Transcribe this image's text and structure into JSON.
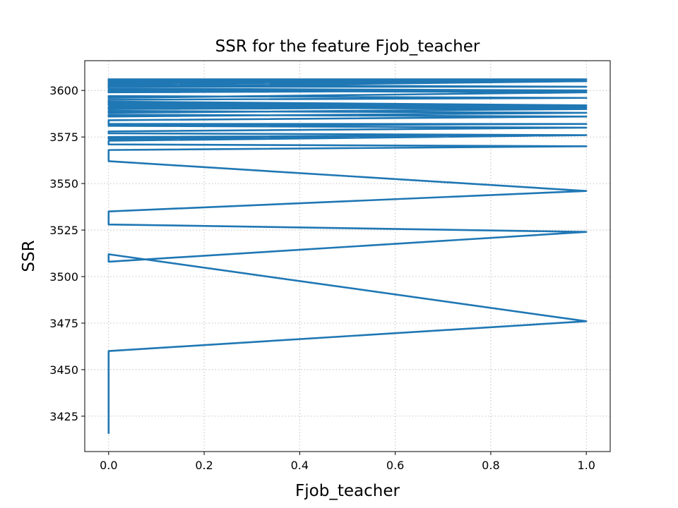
{
  "chart_data": {
    "type": "line",
    "title": "SSR for the feature Fjob_teacher",
    "xlabel": "Fjob_teacher",
    "ylabel": "SSR",
    "xlim": [
      -0.05,
      1.05
    ],
    "ylim": [
      3406,
      3616
    ],
    "xticks": [
      0.0,
      0.2,
      0.4,
      0.6,
      0.8,
      1.0
    ],
    "xtick_labels": [
      "0.0",
      "0.2",
      "0.4",
      "0.6",
      "0.8",
      "1.0"
    ],
    "yticks": [
      3425,
      3450,
      3475,
      3500,
      3525,
      3550,
      3575,
      3600
    ],
    "ytick_labels": [
      "3425",
      "3450",
      "3475",
      "3500",
      "3525",
      "3550",
      "3575",
      "3600"
    ],
    "grid": true,
    "line_color": "#1f77b4",
    "series": [
      {
        "x": [
          0,
          0,
          1,
          0,
          0,
          1,
          0,
          0,
          1,
          0,
          0,
          1,
          0,
          0,
          1,
          0,
          0,
          1,
          0,
          0,
          1,
          0,
          0,
          1,
          0,
          0,
          1,
          0,
          0,
          1,
          0,
          0,
          1,
          0,
          0,
          1,
          0,
          0,
          1,
          0,
          0,
          1,
          0,
          0,
          1,
          0,
          0,
          1,
          0,
          0,
          1,
          0,
          0,
          1,
          0,
          0,
          1,
          0,
          0,
          1,
          0,
          0,
          1,
          0
        ],
        "y": [
          3416,
          3460,
          3476,
          3512,
          3508,
          3524,
          3528,
          3535,
          3546,
          3562,
          3568,
          3570,
          3571,
          3573,
          3576,
          3575,
          3574,
          3576,
          3577,
          3578,
          3580,
          3581,
          3582,
          3582,
          3581,
          3584,
          3586,
          3587,
          3586,
          3588,
          3589,
          3588,
          3590,
          3591,
          3590,
          3591,
          3592,
          3594,
          3592,
          3593,
          3595,
          3596,
          3597,
          3596,
          3599,
          3600,
          3599,
          3600,
          3601,
          3602,
          3602,
          3603,
          3602,
          3605,
          3606,
          3605,
          3606,
          3604,
          3603,
          3606,
          3606,
          3604,
          3606,
          3606
        ]
      }
    ]
  }
}
